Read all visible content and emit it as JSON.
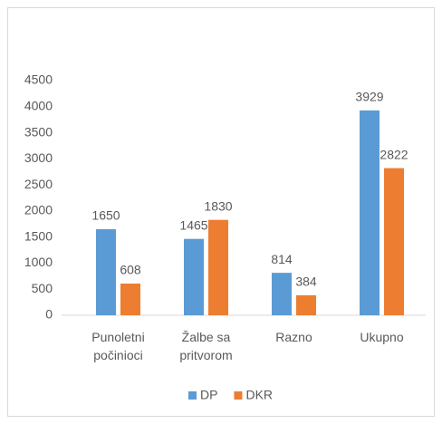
{
  "chart_data": {
    "type": "bar",
    "categories": [
      "Punoletni počinioci",
      "Žalbe sa pritvorom",
      "Razno",
      "Ukupno"
    ],
    "series": [
      {
        "name": "DP",
        "color": "#5b9bd5",
        "values": [
          1650,
          1465,
          814,
          3929
        ]
      },
      {
        "name": "DKR",
        "color": "#ed7d31",
        "values": [
          608,
          1830,
          384,
          2822
        ]
      }
    ],
    "ylim": [
      0,
      4500
    ],
    "yticks": [
      0,
      500,
      1000,
      1500,
      2000,
      2500,
      3000,
      3500,
      4000,
      4500
    ],
    "grid": false,
    "legend": "bottom"
  }
}
